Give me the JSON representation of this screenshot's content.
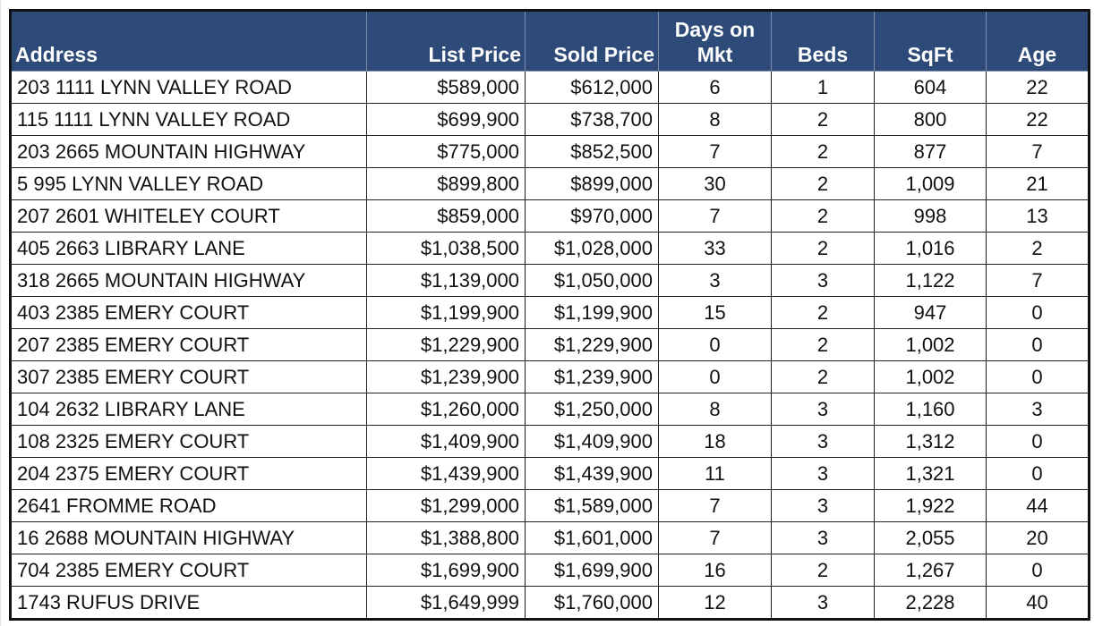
{
  "table": {
    "header": [
      "Address",
      "List Price",
      "Sold Price",
      "Days on Mkt",
      "Beds",
      "SqFt",
      "Age"
    ],
    "rows": [
      [
        "203 1111 LYNN VALLEY ROAD",
        "$589,000",
        "$612,000",
        "6",
        "1",
        "604",
        "22"
      ],
      [
        "115 1111 LYNN VALLEY ROAD",
        "$699,900",
        "$738,700",
        "8",
        "2",
        "800",
        "22"
      ],
      [
        "203 2665 MOUNTAIN HIGHWAY",
        "$775,000",
        "$852,500",
        "7",
        "2",
        "877",
        "7"
      ],
      [
        "5 995 LYNN VALLEY ROAD",
        "$899,800",
        "$899,000",
        "30",
        "2",
        "1,009",
        "21"
      ],
      [
        "207 2601 WHITELEY COURT",
        "$859,000",
        "$970,000",
        "7",
        "2",
        "998",
        "13"
      ],
      [
        "405 2663 LIBRARY LANE",
        "$1,038,500",
        "$1,028,000",
        "33",
        "2",
        "1,016",
        "2"
      ],
      [
        "318 2665 MOUNTAIN HIGHWAY",
        "$1,139,000",
        "$1,050,000",
        "3",
        "3",
        "1,122",
        "7"
      ],
      [
        "403 2385 EMERY COURT",
        "$1,199,900",
        "$1,199,900",
        "15",
        "2",
        "947",
        "0"
      ],
      [
        "207 2385 EMERY COURT",
        "$1,229,900",
        "$1,229,900",
        "0",
        "2",
        "1,002",
        "0"
      ],
      [
        "307 2385 EMERY COURT",
        "$1,239,900",
        "$1,239,900",
        "0",
        "2",
        "1,002",
        "0"
      ],
      [
        "104 2632 LIBRARY LANE",
        "$1,260,000",
        "$1,250,000",
        "8",
        "3",
        "1,160",
        "3"
      ],
      [
        "108 2325 EMERY COURT",
        "$1,409,900",
        "$1,409,900",
        "18",
        "3",
        "1,312",
        "0"
      ],
      [
        "204 2375 EMERY COURT",
        "$1,439,900",
        "$1,439,900",
        "11",
        "3",
        "1,321",
        "0"
      ],
      [
        "2641 FROMME ROAD",
        "$1,299,000",
        "$1,589,000",
        "7",
        "3",
        "1,922",
        "44"
      ],
      [
        "16 2688 MOUNTAIN HIGHWAY",
        "$1,388,800",
        "$1,601,000",
        "7",
        "3",
        "2,055",
        "20"
      ],
      [
        "704 2385 EMERY COURT",
        "$1,699,900",
        "$1,699,900",
        "16",
        "2",
        "1,267",
        "0"
      ],
      [
        "1743 RUFUS DRIVE",
        "$1,649,999",
        "$1,760,000",
        "12",
        "3",
        "2,228",
        "40"
      ]
    ]
  }
}
